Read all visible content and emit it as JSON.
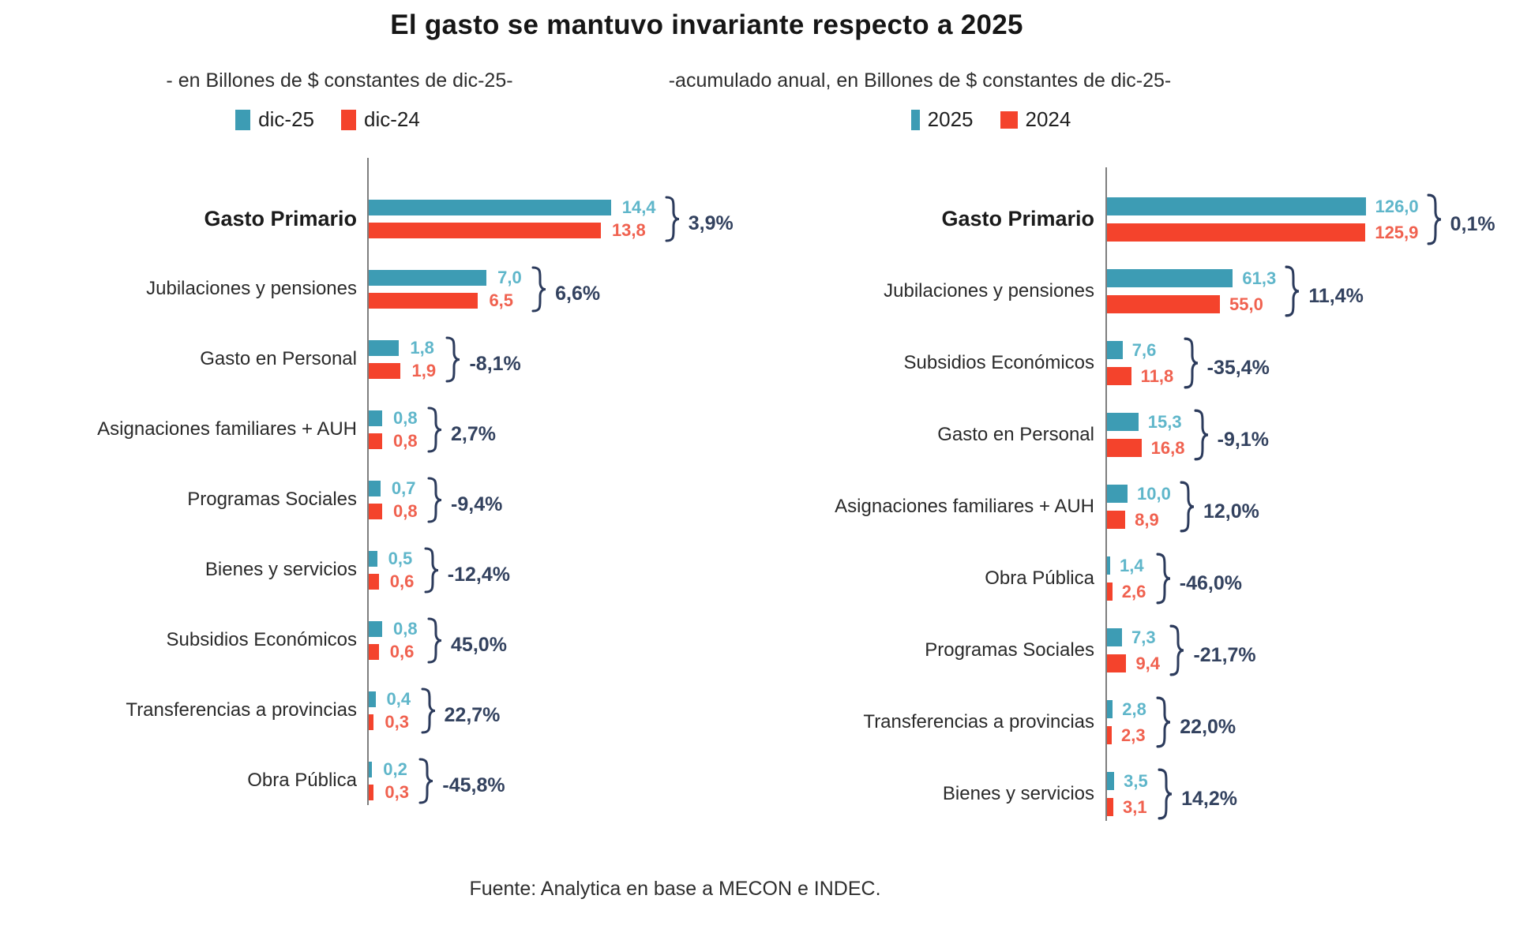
{
  "title": "El gasto se mantuvo invariante respecto a 2025",
  "source": "Fuente: Analytica en base a MECON e INDEC.",
  "colors": {
    "bar_current": "#3D9CB4",
    "bar_previous": "#F4432C",
    "value_current": "#5FB6CA",
    "value_previous": "#F0614F",
    "pct": "#33425F",
    "brace": "#2C3B5C",
    "axis": "#7E7E7E"
  },
  "chart_data": [
    {
      "id": "monthly",
      "type": "bar",
      "orientation": "horizontal",
      "subtitle": "- en Billones de $ constantes de dic-25-",
      "legend": [
        {
          "label": "dic-25",
          "color": "#3D9CB4"
        },
        {
          "label": "dic-24",
          "color": "#F4432C"
        }
      ],
      "xmax": 14.4,
      "categories": [
        "Gasto Primario",
        "Jubilaciones y pensiones",
        "Gasto en Personal",
        "Asignaciones familiares + AUH",
        "Programas Sociales",
        "Bienes y servicios",
        "Subsidios Económicos",
        "Transferencias a provincias",
        "Obra Pública"
      ],
      "series": [
        {
          "name": "dic-25",
          "values": [
            14.4,
            7.0,
            1.8,
            0.8,
            0.7,
            0.5,
            0.8,
            0.4,
            0.2
          ],
          "labels": [
            "14,4",
            "7,0",
            "1,8",
            "0,8",
            "0,7",
            "0,5",
            "0,8",
            "0,4",
            "0,2"
          ]
        },
        {
          "name": "dic-24",
          "values": [
            13.8,
            6.5,
            1.9,
            0.8,
            0.8,
            0.6,
            0.6,
            0.3,
            0.3
          ],
          "labels": [
            "13,8",
            "6,5",
            "1,9",
            "0,8",
            "0,8",
            "0,6",
            "0,6",
            "0,3",
            "0,3"
          ]
        }
      ],
      "pct_change": [
        "3,9%",
        "6,6%",
        "-8,1%",
        "2,7%",
        "-9,4%",
        "-12,4%",
        "45,0%",
        "22,7%",
        "-45,8%"
      ]
    },
    {
      "id": "annual",
      "type": "bar",
      "orientation": "horizontal",
      "subtitle": "-acumulado anual, en Billones de $ constantes de dic-25-",
      "legend": [
        {
          "label": "2025",
          "color": "#3D9CB4"
        },
        {
          "label": "2024",
          "color": "#F4432C"
        }
      ],
      "xmax": 126.0,
      "categories": [
        "Gasto Primario",
        "Jubilaciones y pensiones",
        "Subsidios Económicos",
        "Gasto en Personal",
        "Asignaciones familiares + AUH",
        "Obra Pública",
        "Programas Sociales",
        "Transferencias a provincias",
        "Bienes y servicios"
      ],
      "series": [
        {
          "name": "2025",
          "values": [
            126.0,
            61.3,
            7.6,
            15.3,
            10.0,
            1.4,
            7.3,
            2.8,
            3.5
          ],
          "labels": [
            "126,0",
            "61,3",
            "7,6",
            "15,3",
            "10,0",
            "1,4",
            "7,3",
            "2,8",
            "3,5"
          ]
        },
        {
          "name": "2024",
          "values": [
            125.9,
            55.0,
            11.8,
            16.8,
            8.9,
            2.6,
            9.4,
            2.3,
            3.1
          ],
          "labels": [
            "125,9",
            "55,0",
            "11,8",
            "16,8",
            "8,9",
            "2,6",
            "9,4",
            "2,3",
            "3,1"
          ]
        }
      ],
      "pct_change": [
        "0,1%",
        "11,4%",
        "-35,4%",
        "-9,1%",
        "12,0%",
        "-46,0%",
        "-21,7%",
        "22,0%",
        "14,2%"
      ]
    }
  ]
}
